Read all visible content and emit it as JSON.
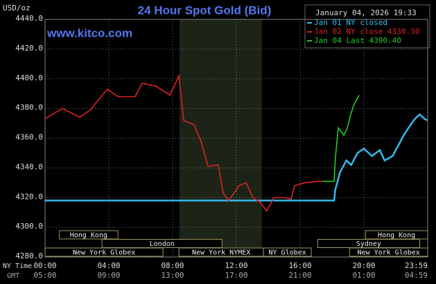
{
  "chart_data": {
    "type": "line",
    "title": "24 Hour Spot Gold (Bid)",
    "y_label": "USD/oz",
    "watermark": "www.kitco.com",
    "timestamp": "January 04, 2026 19:33",
    "x_label": "NY Time",
    "x2_label": "GMT",
    "xlim": [
      0,
      24
    ],
    "ylim": [
      4280,
      4440
    ],
    "xticks": [
      {
        "value": 0,
        "label": "00:00"
      },
      {
        "value": 4,
        "label": "04:00"
      },
      {
        "value": 8,
        "label": "08:00"
      },
      {
        "value": 12,
        "label": "12:00"
      },
      {
        "value": 16,
        "label": "16:00"
      },
      {
        "value": 20,
        "label": "20:00"
      },
      {
        "value": 24,
        "label": "23:59"
      }
    ],
    "x2tick_labels": [
      "05:00",
      "09:00",
      "13:00",
      "17:00",
      "21:00",
      "01:00",
      "04:59"
    ],
    "yticks": [
      {
        "value": 4280,
        "label": "4280.0"
      },
      {
        "value": 4300,
        "label": "4300.0"
      },
      {
        "value": 4320,
        "label": "4320.0"
      },
      {
        "value": 4340,
        "label": "4340.0"
      },
      {
        "value": 4360,
        "label": "4360.0"
      },
      {
        "value": 4380,
        "label": "4380.0"
      },
      {
        "value": 4400,
        "label": "4400.0"
      },
      {
        "value": 4420,
        "label": "4420.0"
      },
      {
        "value": 4440,
        "label": "4440.0"
      }
    ],
    "grid": true,
    "shaded_region": [
      8.43,
      13.6
    ],
    "series": [
      {
        "name": "Jan 01 NY closed",
        "color": "#33bbee",
        "x": [
          0,
          18.13,
          18.2,
          18.5,
          18.9,
          19.2,
          19.6,
          20,
          20.5,
          21,
          21.3,
          21.8,
          22.2,
          22.5,
          22.8,
          23.2,
          23.5,
          23.8,
          23.98
        ],
        "values": [
          4318,
          4318,
          4325,
          4337,
          4345,
          4342,
          4350,
          4353,
          4348,
          4352,
          4345,
          4348,
          4356,
          4362,
          4367,
          4373,
          4376,
          4373,
          4372
        ]
      },
      {
        "name": "Jan 02 NY close 4330.30",
        "color": "#dd2222",
        "x": [
          0,
          1.09,
          2.17,
          2.83,
          3.91,
          4.57,
          5.65,
          6.09,
          6.96,
          7.83,
          8.39,
          8.7,
          9.35,
          9.78,
          10.22,
          10.87,
          11.17,
          11.52,
          12.17,
          12.61,
          13.04,
          13.48,
          13.91,
          14.35,
          15,
          15.43,
          15.65,
          16.3,
          17.17,
          17.39
        ],
        "values": [
          4373,
          4380,
          4374,
          4379,
          4393,
          4388,
          4388,
          4397,
          4395,
          4389,
          4402,
          4372,
          4369,
          4358,
          4341,
          4342,
          4323,
          4318,
          4328,
          4330,
          4320,
          4317,
          4311,
          4320,
          4320,
          4319,
          4328,
          4330,
          4331,
          4331
        ]
      },
      {
        "name": "Jan 04 Last 4390.40",
        "color": "#22cc22",
        "x": [
          17.39,
          18.13,
          18.22,
          18.39,
          18.74,
          18.96,
          19.17,
          19.39,
          19.7
        ],
        "values": [
          4331,
          4331,
          4348,
          4367,
          4362,
          4367,
          4376,
          4383,
          4389
        ]
      }
    ],
    "sessions": [
      {
        "name": "Hong Kong",
        "start": 0.9,
        "end": 4.57
      },
      {
        "name": "Hong Kong",
        "start": 20.1,
        "end": 24
      },
      {
        "name": "London",
        "start": 3.57,
        "end": 11.1
      },
      {
        "name": "Sydney",
        "start": 17.1,
        "end": 23.5
      },
      {
        "name": "New York Globex",
        "start": 0,
        "end": 7.4
      },
      {
        "name": "New York NYMEX",
        "start": 8.4,
        "end": 13.7
      },
      {
        "name": "NY Globex",
        "start": 13.7,
        "end": 16.7
      },
      {
        "name": "New York Globex",
        "start": 19.1,
        "end": 24
      }
    ]
  }
}
